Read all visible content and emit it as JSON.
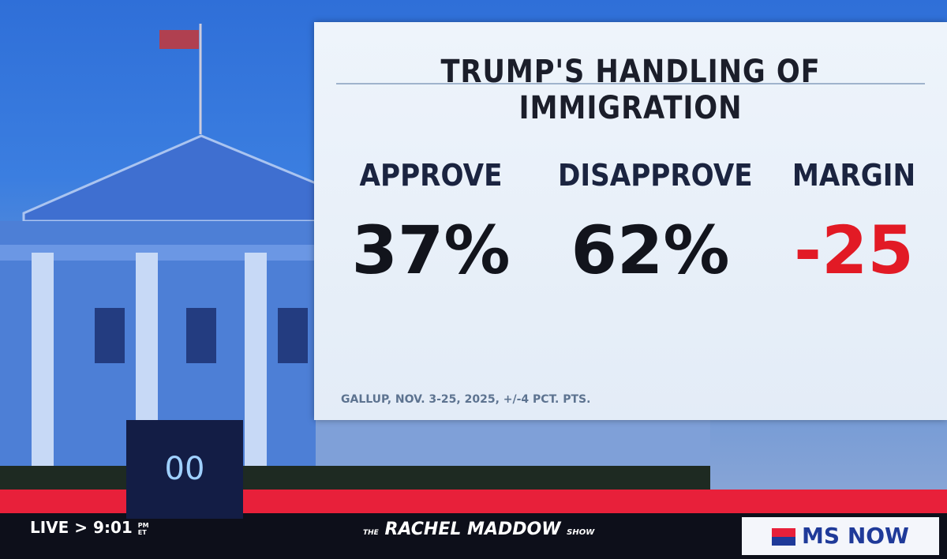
{
  "graphic": {
    "title": "TRUMP'S HANDLING OF IMMIGRATION",
    "stats": [
      {
        "label": "APPROVE",
        "value": "37%"
      },
      {
        "label": "DISAPPROVE",
        "value": "62%"
      },
      {
        "label": "MARGIN",
        "value": "-25"
      }
    ],
    "source": "GALLUP, NOV. 3-25, 2025, +/-4 PCT. PTS."
  },
  "timer": "00",
  "bottom_bar": {
    "live": "LIVE",
    "arrow": ">",
    "time": "9:01",
    "time_suffix_top": "PM",
    "time_suffix_bottom": "ET",
    "show_prefix": "THE",
    "show_name": "RACHEL MADDOW",
    "show_suffix": "SHOW",
    "network": "MS NOW"
  }
}
